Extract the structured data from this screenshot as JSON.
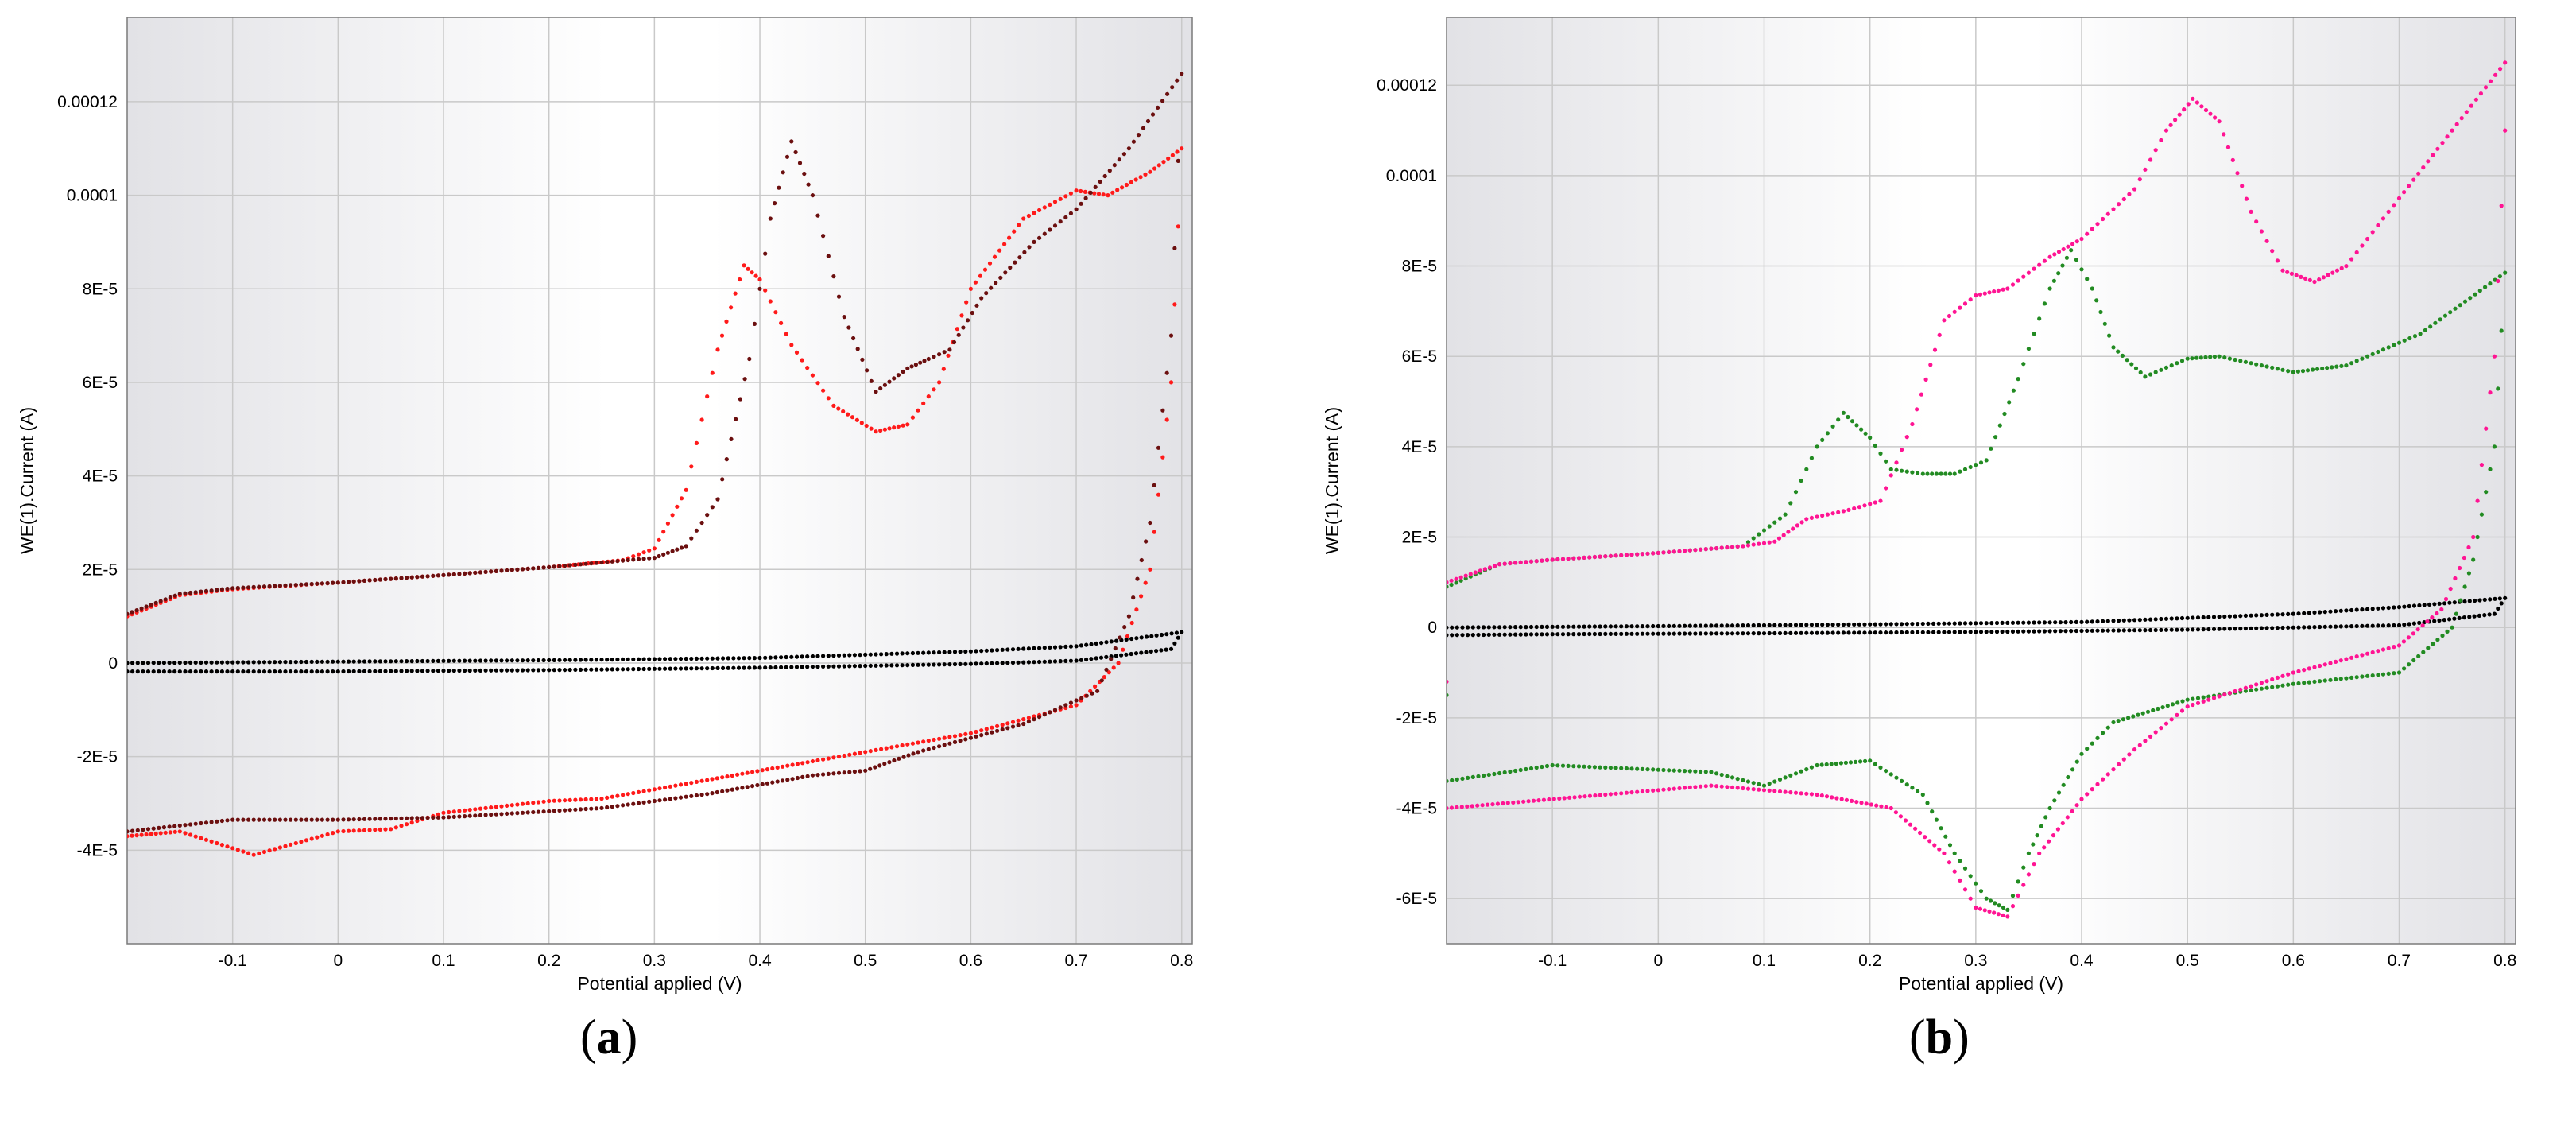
{
  "panels": [
    {
      "id": "a",
      "label_open": "(",
      "label_letter": "a",
      "label_close": ")"
    },
    {
      "id": "b",
      "label_open": "(",
      "label_letter": "b",
      "label_close": ")"
    }
  ],
  "colors": {
    "background": "#ffffff",
    "plot_gradient_edge": "#e2e2e6",
    "plot_gradient_center": "#ffffff",
    "grid": "#c9c9c9"
  },
  "chart_data": [
    {
      "type": "scatter",
      "panel": "a",
      "title": "",
      "xlabel": "Potential applied (V)",
      "ylabel": "WE(1).Current (A)",
      "xlim": [
        -0.2,
        0.81
      ],
      "ylim": [
        -6e-05,
        0.000138
      ],
      "xticks": [
        -0.1,
        0,
        0.1,
        0.2,
        0.3,
        0.4,
        0.5,
        0.6,
        0.7,
        0.8
      ],
      "xtick_labels": [
        "-0.1",
        "0",
        "0.1",
        "0.2",
        "0.3",
        "0.4",
        "0.5",
        "0.6",
        "0.7",
        "0.8"
      ],
      "yticks": [
        -4e-05,
        -2e-05,
        0,
        2e-05,
        4e-05,
        6e-05,
        8e-05,
        0.0001,
        0.00012
      ],
      "ytick_labels": [
        "-4E-5",
        "-2E-5",
        "0",
        "2E-5",
        "4E-5",
        "6E-5",
        "8E-5",
        "0.0001",
        "0.00012"
      ],
      "grid": true,
      "legend": "none",
      "series": [
        {
          "color": "#000000",
          "points": [
            [
              -0.2,
              0.0
            ],
            [
              0.0,
              3e-07
            ],
            [
              0.2,
              6e-07
            ],
            [
              0.4,
              1.1e-06
            ],
            [
              0.6,
              2.5e-06
            ],
            [
              0.7,
              3.6e-06
            ],
            [
              0.8,
              6.6e-06
            ],
            [
              0.79,
              3e-06
            ],
            [
              0.7,
              5e-07
            ],
            [
              0.6,
              -2e-07
            ],
            [
              0.4,
              -1e-06
            ],
            [
              0.2,
              -1.5e-06
            ],
            [
              0.0,
              -1.8e-06
            ],
            [
              -0.2,
              -1.8e-06
            ]
          ]
        },
        {
          "color": "#ff1a1a",
          "points": [
            [
              -0.2,
              1e-05
            ],
            [
              -0.15,
              1.45e-05
            ],
            [
              -0.1,
              1.58e-05
            ],
            [
              0.0,
              1.72e-05
            ],
            [
              0.1,
              1.88e-05
            ],
            [
              0.2,
              2.05e-05
            ],
            [
              0.27,
              2.2e-05
            ],
            [
              0.3,
              2.45e-05
            ],
            [
              0.33,
              3.7e-05
            ],
            [
              0.36,
              6.7e-05
            ],
            [
              0.385,
              8.5e-05
            ],
            [
              0.4,
              8.2e-05
            ],
            [
              0.43,
              6.8e-05
            ],
            [
              0.47,
              5.5e-05
            ],
            [
              0.51,
              4.95e-05
            ],
            [
              0.54,
              5.1e-05
            ],
            [
              0.57,
              6e-05
            ],
            [
              0.6,
              8e-05
            ],
            [
              0.65,
              9.5e-05
            ],
            [
              0.7,
              0.000101
            ],
            [
              0.73,
              0.0001
            ],
            [
              0.77,
              0.000105
            ],
            [
              0.8,
              0.00011
            ],
            [
              0.79,
              6e-05
            ],
            [
              0.77,
              2e-05
            ],
            [
              0.74,
              0.0
            ],
            [
              0.7,
              -9e-06
            ],
            [
              0.6,
              -1.5e-05
            ],
            [
              0.5,
              -1.9e-05
            ],
            [
              0.45,
              -2.1e-05
            ],
            [
              0.35,
              -2.5e-05
            ],
            [
              0.25,
              -2.9e-05
            ],
            [
              0.2,
              -2.95e-05
            ],
            [
              0.1,
              -3.2e-05
            ],
            [
              0.05,
              -3.55e-05
            ],
            [
              0.0,
              -3.6e-05
            ],
            [
              -0.04,
              -3.85e-05
            ],
            [
              -0.08,
              -4.1e-05
            ],
            [
              -0.15,
              -3.6e-05
            ],
            [
              -0.2,
              -3.7e-05
            ]
          ]
        },
        {
          "color": "#6b0f0f",
          "points": [
            [
              -0.2,
              1.05e-05
            ],
            [
              -0.15,
              1.48e-05
            ],
            [
              -0.1,
              1.6e-05
            ],
            [
              0.0,
              1.72e-05
            ],
            [
              0.1,
              1.88e-05
            ],
            [
              0.2,
              2.05e-05
            ],
            [
              0.3,
              2.25e-05
            ],
            [
              0.33,
              2.5e-05
            ],
            [
              0.36,
              3.5e-05
            ],
            [
              0.39,
              6.5e-05
            ],
            [
              0.41,
              9.5e-05
            ],
            [
              0.43,
              0.0001115
            ],
            [
              0.45,
              0.0001
            ],
            [
              0.48,
              7.4e-05
            ],
            [
              0.51,
              5.8e-05
            ],
            [
              0.54,
              6.3e-05
            ],
            [
              0.56,
              6.5e-05
            ],
            [
              0.58,
              6.7e-05
            ],
            [
              0.61,
              7.8e-05
            ],
            [
              0.66,
              9e-05
            ],
            [
              0.7,
              9.7e-05
            ],
            [
              0.75,
              0.00011
            ],
            [
              0.8,
              0.000126
            ],
            [
              0.79,
              7e-05
            ],
            [
              0.77,
              3e-05
            ],
            [
              0.75,
              1e-05
            ],
            [
              0.72,
              -6e-06
            ],
            [
              0.65,
              -1.3e-05
            ],
            [
              0.55,
              -1.9e-05
            ],
            [
              0.5,
              -2.3e-05
            ],
            [
              0.45,
              -2.4e-05
            ],
            [
              0.35,
              -2.8e-05
            ],
            [
              0.25,
              -3.1e-05
            ],
            [
              0.1,
              -3.3e-05
            ],
            [
              0.0,
              -3.35e-05
            ],
            [
              -0.1,
              -3.35e-05
            ],
            [
              -0.2,
              -3.6e-05
            ]
          ]
        }
      ]
    },
    {
      "type": "scatter",
      "panel": "b",
      "title": "",
      "xlabel": "Potential applied (V)",
      "ylabel": "WE(1).Current (A)",
      "xlim": [
        -0.2,
        0.81
      ],
      "ylim": [
        -7e-05,
        0.000135
      ],
      "xticks": [
        -0.1,
        0,
        0.1,
        0.2,
        0.3,
        0.4,
        0.5,
        0.6,
        0.7,
        0.8
      ],
      "xtick_labels": [
        "-0.1",
        "0",
        "0.1",
        "0.2",
        "0.3",
        "0.4",
        "0.5",
        "0.6",
        "0.7",
        "0.8"
      ],
      "yticks": [
        -6e-05,
        -4e-05,
        -2e-05,
        0,
        2e-05,
        4e-05,
        6e-05,
        8e-05,
        0.0001,
        0.00012
      ],
      "ytick_labels": [
        "-6E-5",
        "-4E-5",
        "-2E-5",
        "0",
        "2E-5",
        "4E-5",
        "6E-5",
        "8E-5",
        "0.0001",
        "0.00012"
      ],
      "grid": true,
      "legend": "none",
      "series": [
        {
          "color": "#000000",
          "points": [
            [
              -0.2,
              0.0
            ],
            [
              0.0,
              3e-07
            ],
            [
              0.2,
              7e-07
            ],
            [
              0.4,
              1.2e-06
            ],
            [
              0.6,
              3e-06
            ],
            [
              0.7,
              4.5e-06
            ],
            [
              0.8,
              6.5e-06
            ],
            [
              0.79,
              3e-06
            ],
            [
              0.7,
              5e-07
            ],
            [
              0.5,
              -5e-07
            ],
            [
              0.3,
              -1e-06
            ],
            [
              0.1,
              -1.3e-06
            ],
            [
              -0.1,
              -1.5e-06
            ],
            [
              -0.2,
              -1.7e-06
            ]
          ]
        },
        {
          "color": "#228b22",
          "points": [
            [
              -0.2,
              9e-06
            ],
            [
              -0.15,
              1.4e-05
            ],
            [
              -0.1,
              1.5e-05
            ],
            [
              0.0,
              1.65e-05
            ],
            [
              0.08,
              1.8e-05
            ],
            [
              0.12,
              2.5e-05
            ],
            [
              0.15,
              4e-05
            ],
            [
              0.175,
              4.75e-05
            ],
            [
              0.2,
              4.2e-05
            ],
            [
              0.22,
              3.5e-05
            ],
            [
              0.25,
              3.4e-05
            ],
            [
              0.28,
              3.4e-05
            ],
            [
              0.31,
              3.7e-05
            ],
            [
              0.34,
              5.5e-05
            ],
            [
              0.37,
              7.5e-05
            ],
            [
              0.39,
              8.35e-05
            ],
            [
              0.41,
              7.5e-05
            ],
            [
              0.43,
              6.2e-05
            ],
            [
              0.46,
              5.55e-05
            ],
            [
              0.5,
              5.95e-05
            ],
            [
              0.53,
              6e-05
            ],
            [
              0.6,
              5.65e-05
            ],
            [
              0.65,
              5.8e-05
            ],
            [
              0.72,
              6.5e-05
            ],
            [
              0.8,
              7.85e-05
            ],
            [
              0.79,
              4e-05
            ],
            [
              0.77,
              1.5e-05
            ],
            [
              0.75,
              0.0
            ],
            [
              0.7,
              -1e-05
            ],
            [
              0.6,
              -1.25e-05
            ],
            [
              0.5,
              -1.6e-05
            ],
            [
              0.43,
              -2.1e-05
            ],
            [
              0.4,
              -2.8e-05
            ],
            [
              0.37,
              -4e-05
            ],
            [
              0.35,
              -5e-05
            ],
            [
              0.33,
              -6.25e-05
            ],
            [
              0.31,
              -6e-05
            ],
            [
              0.28,
              -5e-05
            ],
            [
              0.25,
              -3.7e-05
            ],
            [
              0.2,
              -2.95e-05
            ],
            [
              0.15,
              -3.05e-05
            ],
            [
              0.1,
              -3.5e-05
            ],
            [
              0.05,
              -3.2e-05
            ],
            [
              -0.05,
              -3.1e-05
            ],
            [
              -0.1,
              -3.05e-05
            ],
            [
              -0.2,
              -3.4e-05
            ],
            [
              -0.2,
              -1.5e-05
            ]
          ]
        },
        {
          "color": "#ff1493",
          "points": [
            [
              -0.2,
              1e-05
            ],
            [
              -0.15,
              1.4e-05
            ],
            [
              -0.1,
              1.5e-05
            ],
            [
              0.0,
              1.65e-05
            ],
            [
              0.08,
              1.8e-05
            ],
            [
              0.11,
              1.9e-05
            ],
            [
              0.14,
              2.4e-05
            ],
            [
              0.18,
              2.6e-05
            ],
            [
              0.21,
              2.8e-05
            ],
            [
              0.24,
              4.5e-05
            ],
            [
              0.27,
              6.8e-05
            ],
            [
              0.3,
              7.35e-05
            ],
            [
              0.33,
              7.5e-05
            ],
            [
              0.37,
              8.2e-05
            ],
            [
              0.4,
              8.6e-05
            ],
            [
              0.45,
              9.7e-05
            ],
            [
              0.48,
              0.00011
            ],
            [
              0.505,
              0.000117
            ],
            [
              0.53,
              0.000112
            ],
            [
              0.56,
              9.2e-05
            ],
            [
              0.59,
              7.9e-05
            ],
            [
              0.62,
              7.65e-05
            ],
            [
              0.65,
              8e-05
            ],
            [
              0.7,
              9.5e-05
            ],
            [
              0.75,
              0.00011
            ],
            [
              0.8,
              0.000125
            ],
            [
              0.8,
              0.00011
            ],
            [
              0.79,
              6e-05
            ],
            [
              0.77,
              2e-05
            ],
            [
              0.74,
              4e-06
            ],
            [
              0.7,
              -4e-06
            ],
            [
              0.6,
              -1e-05
            ],
            [
              0.5,
              -1.75e-05
            ],
            [
              0.45,
              -2.7e-05
            ],
            [
              0.4,
              -3.8e-05
            ],
            [
              0.36,
              -5e-05
            ],
            [
              0.33,
              -6.4e-05
            ],
            [
              0.3,
              -6.2e-05
            ],
            [
              0.27,
              -5e-05
            ],
            [
              0.22,
              -4e-05
            ],
            [
              0.15,
              -3.7e-05
            ],
            [
              0.05,
              -3.5e-05
            ],
            [
              -0.05,
              -3.7e-05
            ],
            [
              -0.2,
              -4e-05
            ],
            [
              -0.2,
              -1.2e-05
            ]
          ]
        }
      ]
    }
  ]
}
